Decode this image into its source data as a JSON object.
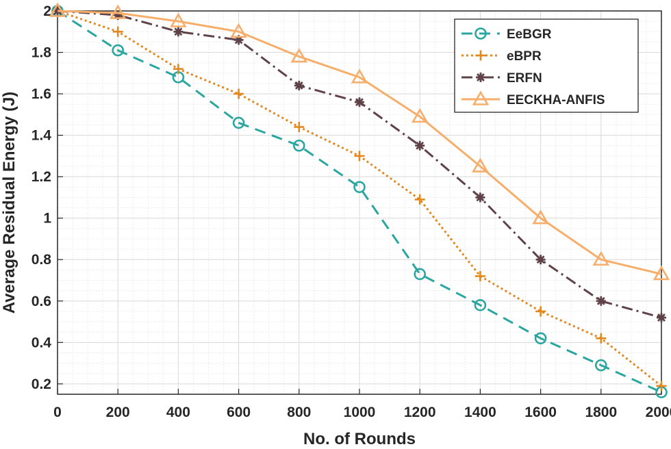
{
  "chart_data": {
    "type": "line",
    "title": "",
    "xlabel": "No. of Rounds",
    "ylabel": "Average Residual Energy (J)",
    "x": [
      0,
      200,
      400,
      600,
      800,
      1000,
      1200,
      1400,
      1600,
      1800,
      2000
    ],
    "xlim": [
      0,
      2000
    ],
    "ylim": [
      0.15,
      2.0
    ],
    "xticks": [
      0,
      200,
      400,
      600,
      800,
      1000,
      1200,
      1400,
      1600,
      1800,
      2000
    ],
    "xtick_labels": [
      "0",
      "200",
      "400",
      "600",
      "800",
      "1000",
      "1200",
      "1400",
      "1600",
      "1800",
      "2000"
    ],
    "yticks": [
      0.2,
      0.4,
      0.6,
      0.8,
      1.0,
      1.2,
      1.4,
      1.6,
      1.8,
      2.0
    ],
    "ytick_labels": [
      "0.2",
      "0.4",
      "0.6",
      "0.8",
      "1",
      "1.2",
      "1.4",
      "1.6",
      "1.8",
      "2"
    ],
    "grid": true,
    "legend_position": "top-right",
    "series": [
      {
        "name": "EeBGR",
        "values": [
          2.0,
          1.81,
          1.68,
          1.46,
          1.35,
          1.15,
          0.73,
          0.58,
          0.42,
          0.29,
          0.16
        ],
        "color": "#2aa6a0",
        "dash": "dashed",
        "marker": "circle"
      },
      {
        "name": "eBPR",
        "values": [
          2.0,
          1.9,
          1.72,
          1.6,
          1.44,
          1.3,
          1.09,
          0.72,
          0.55,
          0.42,
          0.19
        ],
        "color": "#e3871f",
        "dash": "dotted",
        "marker": "plus"
      },
      {
        "name": "ERFN",
        "values": [
          2.0,
          1.98,
          1.9,
          1.86,
          1.64,
          1.56,
          1.35,
          1.1,
          0.8,
          0.6,
          0.52
        ],
        "color": "#5e4248",
        "dash": "dashdot",
        "marker": "asterisk"
      },
      {
        "name": "EECKHA-ANFIS",
        "values": [
          2.0,
          1.99,
          1.95,
          1.9,
          1.78,
          1.68,
          1.49,
          1.25,
          1.0,
          0.8,
          0.73
        ],
        "color": "#f6ae6a",
        "dash": "solid",
        "marker": "triangle"
      }
    ]
  }
}
